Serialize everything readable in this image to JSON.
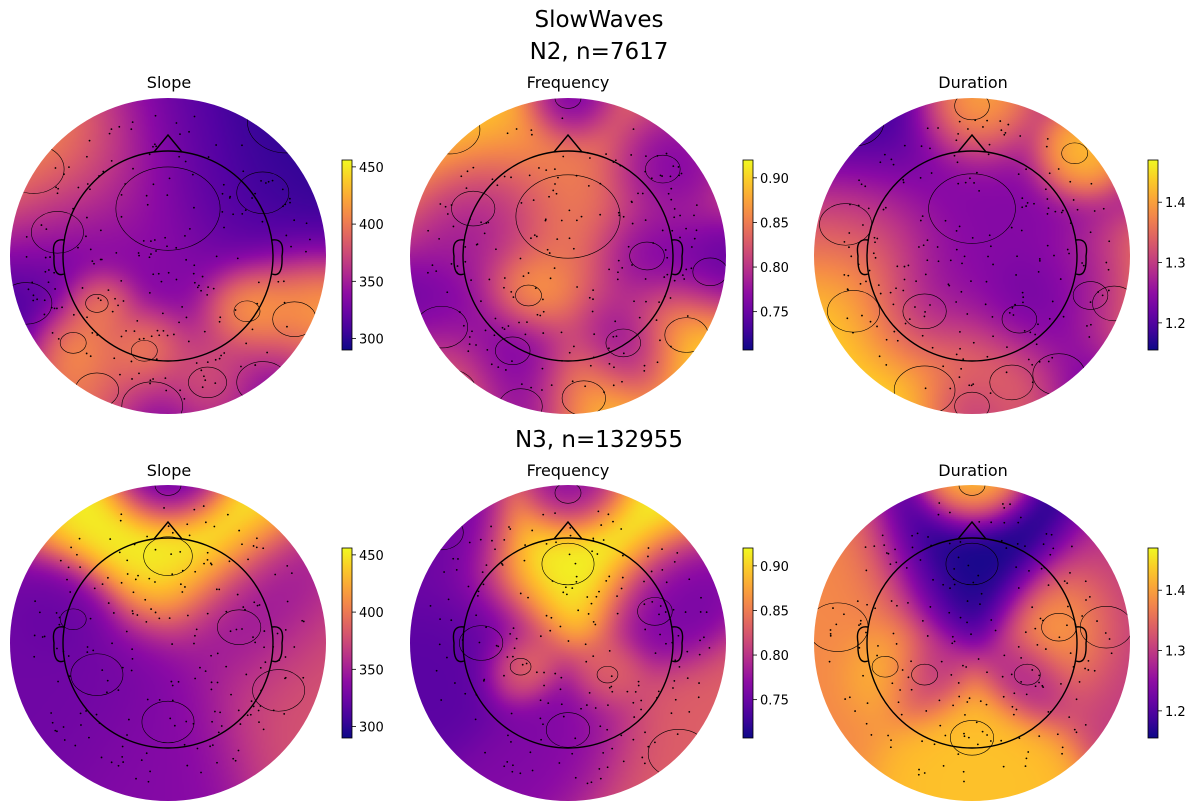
{
  "figure": {
    "title": "SlowWaves"
  },
  "chart_data": [
    {
      "type": "heatmap",
      "subtype": "eeg-topomap",
      "group": "N2, n=7617",
      "title": "Slope",
      "colormap": "plasma",
      "colorbar_range": [
        290,
        456
      ],
      "colorbar_ticks": [
        "300",
        "350",
        "400",
        "450"
      ],
      "hotspots": [
        [
          -0.85,
          0.55,
          440,
          0.35
        ],
        [
          -0.7,
          0.15,
          320,
          0.3
        ],
        [
          0.75,
          0.85,
          290,
          0.45
        ],
        [
          0.6,
          0.4,
          300,
          0.3
        ],
        [
          -0.45,
          -0.3,
          455,
          0.13
        ],
        [
          -0.6,
          -0.55,
          455,
          0.15
        ],
        [
          -0.15,
          -0.6,
          455,
          0.15
        ],
        [
          0.5,
          -0.35,
          455,
          0.15
        ],
        [
          0.8,
          -0.4,
          455,
          0.25
        ],
        [
          -0.1,
          -0.95,
          290,
          0.35
        ],
        [
          0.25,
          -0.8,
          455,
          0.22
        ],
        [
          -0.45,
          -0.85,
          455,
          0.25
        ],
        [
          0.6,
          -0.8,
          300,
          0.3
        ],
        [
          -0.9,
          -0.3,
          300,
          0.3
        ],
        [
          0.0,
          0.3,
          340,
          0.6
        ]
      ],
      "base": 345
    },
    {
      "type": "heatmap",
      "subtype": "eeg-topomap",
      "group": "N2, n=7617",
      "title": "Frequency",
      "colormap": "plasma",
      "colorbar_range": [
        0.707,
        0.92
      ],
      "colorbar_ticks": [
        "0.75",
        "0.80",
        "0.85",
        "0.90"
      ],
      "hotspots": [
        [
          -0.75,
          0.8,
          0.92,
          0.35
        ],
        [
          0.0,
          1.0,
          0.72,
          0.15
        ],
        [
          0.6,
          0.55,
          0.73,
          0.2
        ],
        [
          -0.6,
          0.3,
          0.73,
          0.25
        ],
        [
          0.5,
          0.0,
          0.72,
          0.2
        ],
        [
          0.9,
          -0.1,
          0.71,
          0.2
        ],
        [
          -0.8,
          -0.45,
          0.71,
          0.3
        ],
        [
          -0.35,
          -0.6,
          0.72,
          0.2
        ],
        [
          0.35,
          -0.55,
          0.71,
          0.2
        ],
        [
          0.75,
          -0.5,
          0.92,
          0.25
        ],
        [
          -0.75,
          -0.85,
          0.92,
          0.3
        ],
        [
          0.1,
          -0.9,
          0.92,
          0.25
        ],
        [
          -0.3,
          -0.95,
          0.71,
          0.25
        ],
        [
          0.0,
          0.25,
          0.85,
          0.6
        ],
        [
          -0.25,
          -0.25,
          0.9,
          0.15
        ]
      ],
      "base": 0.8
    },
    {
      "type": "heatmap",
      "subtype": "eeg-topomap",
      "group": "N2, n=7617",
      "title": "Duration",
      "colormap": "plasma",
      "colorbar_range": [
        1.155,
        1.47
      ],
      "colorbar_ticks": [
        "1.2",
        "1.3",
        "1.4"
      ],
      "hotspots": [
        [
          -0.75,
          0.85,
          1.16,
          0.35
        ],
        [
          0.0,
          0.95,
          1.47,
          0.2
        ],
        [
          0.65,
          0.65,
          1.47,
          0.15
        ],
        [
          -0.8,
          0.2,
          1.35,
          0.3
        ],
        [
          0.75,
          -0.25,
          1.16,
          0.2
        ],
        [
          0.9,
          -0.3,
          1.45,
          0.25
        ],
        [
          -0.75,
          -0.35,
          1.46,
          0.3
        ],
        [
          -0.3,
          -0.85,
          1.47,
          0.35
        ],
        [
          0.25,
          -0.8,
          1.47,
          0.25
        ],
        [
          0.55,
          -0.75,
          1.16,
          0.3
        ],
        [
          -0.3,
          -0.35,
          1.2,
          0.25
        ],
        [
          0.3,
          -0.4,
          1.2,
          0.2
        ],
        [
          0.0,
          0.3,
          1.24,
          0.5
        ],
        [
          0.0,
          -0.95,
          1.17,
          0.2
        ]
      ],
      "base": 1.3
    },
    {
      "type": "heatmap",
      "subtype": "eeg-topomap",
      "group": "N3, n=132955",
      "title": "Slope",
      "colormap": "plasma",
      "colorbar_range": [
        290,
        456
      ],
      "colorbar_ticks": [
        "300",
        "350",
        "400",
        "450"
      ],
      "hotspots": [
        [
          0.0,
          0.55,
          456,
          0.28
        ],
        [
          0.0,
          1.0,
          300,
          0.15
        ],
        [
          -0.45,
          -0.2,
          325,
          0.3
        ],
        [
          0.45,
          0.1,
          335,
          0.25
        ],
        [
          0.0,
          -0.5,
          335,
          0.3
        ],
        [
          -0.6,
          0.15,
          320,
          0.15
        ],
        [
          0.7,
          -0.3,
          380,
          0.3
        ]
      ],
      "base": 355
    },
    {
      "type": "heatmap",
      "subtype": "eeg-topomap",
      "group": "N3, n=132955",
      "title": "Frequency",
      "colormap": "plasma",
      "colorbar_range": [
        0.707,
        0.92
      ],
      "colorbar_ticks": [
        "0.75",
        "0.80",
        "0.85",
        "0.90"
      ],
      "hotspots": [
        [
          0.0,
          0.5,
          0.92,
          0.3
        ],
        [
          0.0,
          0.95,
          0.74,
          0.15
        ],
        [
          -0.55,
          0.0,
          0.74,
          0.25
        ],
        [
          0.55,
          0.2,
          0.75,
          0.2
        ],
        [
          0.0,
          -0.55,
          0.76,
          0.25
        ],
        [
          -0.3,
          -0.15,
          0.87,
          0.12
        ],
        [
          0.25,
          -0.2,
          0.84,
          0.12
        ],
        [
          -0.8,
          0.7,
          0.75,
          0.25
        ],
        [
          0.7,
          -0.7,
          0.83,
          0.35
        ]
      ],
      "base": 0.8
    },
    {
      "type": "heatmap",
      "subtype": "eeg-topomap",
      "group": "N3, n=132955",
      "title": "Duration",
      "colormap": "plasma",
      "colorbar_range": [
        1.155,
        1.47
      ],
      "colorbar_ticks": [
        "1.2",
        "1.3",
        "1.4"
      ],
      "hotspots": [
        [
          0.0,
          0.5,
          1.155,
          0.3
        ],
        [
          0.0,
          1.0,
          1.47,
          0.15
        ],
        [
          0.55,
          0.1,
          1.46,
          0.2
        ],
        [
          -0.55,
          -0.15,
          1.44,
          0.15
        ],
        [
          0.0,
          -0.6,
          1.43,
          0.25
        ],
        [
          -0.3,
          -0.2,
          1.27,
          0.15
        ],
        [
          0.35,
          -0.2,
          1.25,
          0.15
        ],
        [
          -0.85,
          0.1,
          1.38,
          0.35
        ],
        [
          0.85,
          0.1,
          1.3,
          0.3
        ]
      ],
      "base": 1.3
    }
  ]
}
